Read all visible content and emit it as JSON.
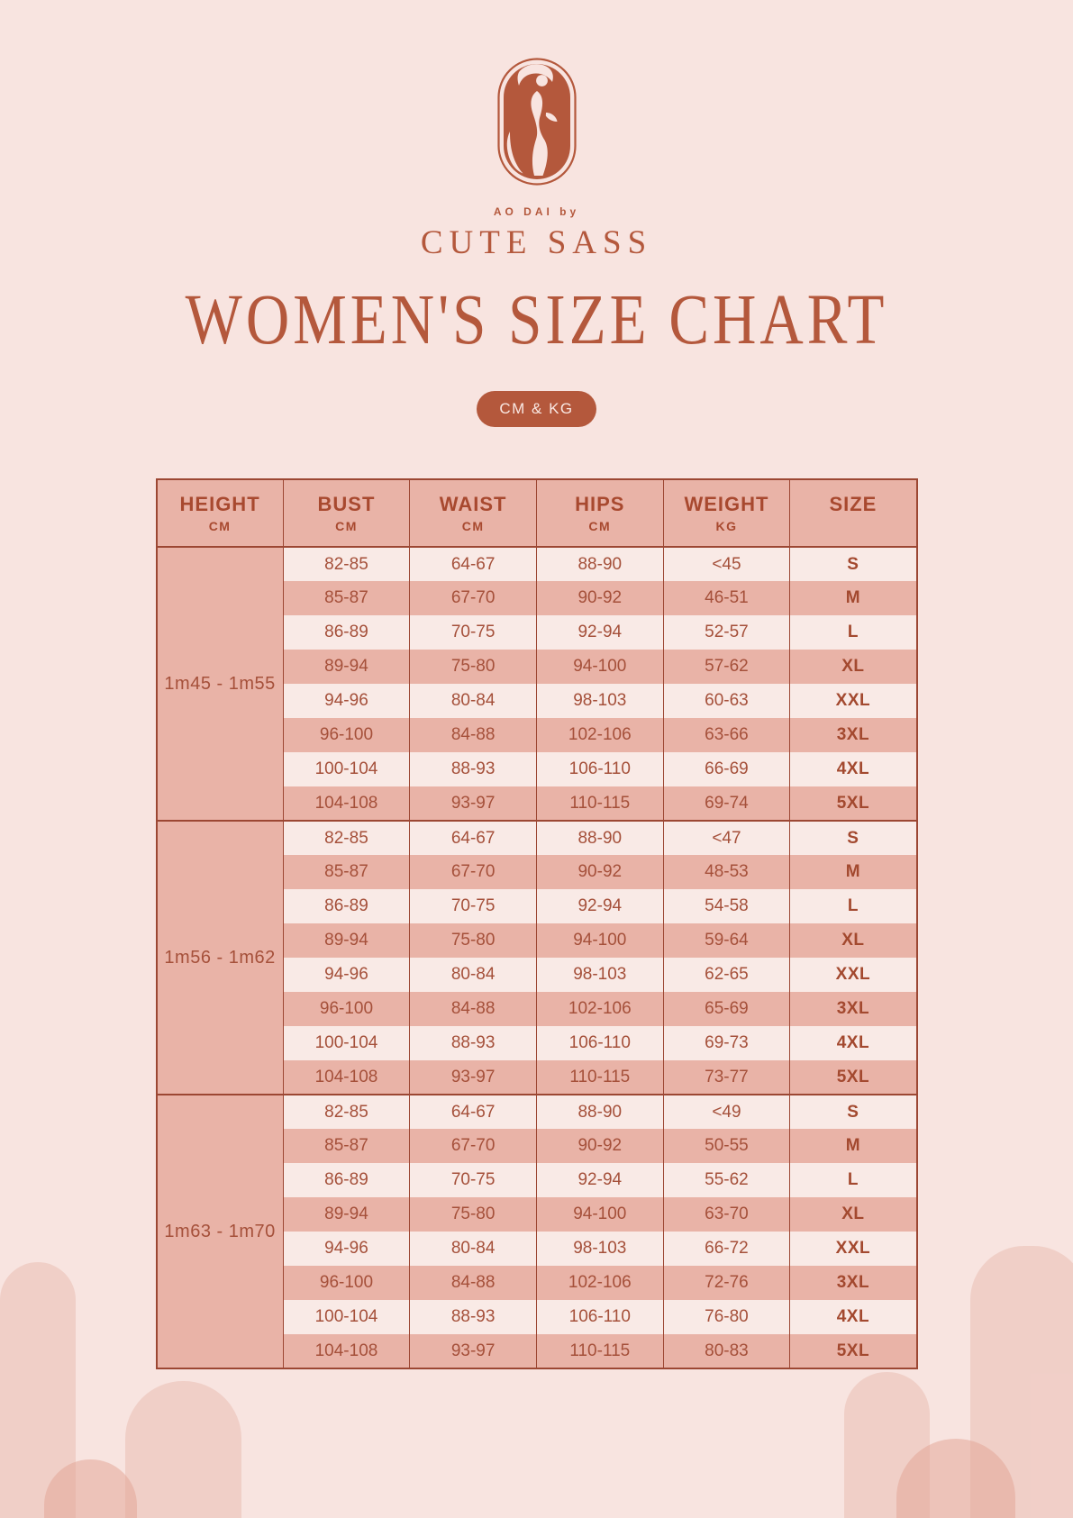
{
  "brand": {
    "logo_tagline": "AO DAI by",
    "logo_name": "CUTE SASS",
    "title": "WOMEN'S SIZE CHART",
    "units_badge": "CM & KG"
  },
  "table": {
    "headers": [
      {
        "label": "HEIGHT",
        "unit": "CM"
      },
      {
        "label": "BUST",
        "unit": "CM"
      },
      {
        "label": "WAIST",
        "unit": "CM"
      },
      {
        "label": "HIPS",
        "unit": "CM"
      },
      {
        "label": "WEIGHT",
        "unit": "KG"
      },
      {
        "label": "SIZE",
        "unit": ""
      }
    ],
    "groups": [
      {
        "height_range": "1m45 - 1m55",
        "rows": [
          {
            "bust": "82-85",
            "waist": "64-67",
            "hips": "88-90",
            "weight": "<45",
            "size": "S"
          },
          {
            "bust": "85-87",
            "waist": "67-70",
            "hips": "90-92",
            "weight": "46-51",
            "size": "M"
          },
          {
            "bust": "86-89",
            "waist": "70-75",
            "hips": "92-94",
            "weight": "52-57",
            "size": "L"
          },
          {
            "bust": "89-94",
            "waist": "75-80",
            "hips": "94-100",
            "weight": "57-62",
            "size": "XL"
          },
          {
            "bust": "94-96",
            "waist": "80-84",
            "hips": "98-103",
            "weight": "60-63",
            "size": "XXL"
          },
          {
            "bust": "96-100",
            "waist": "84-88",
            "hips": "102-106",
            "weight": "63-66",
            "size": "3XL"
          },
          {
            "bust": "100-104",
            "waist": "88-93",
            "hips": "106-110",
            "weight": "66-69",
            "size": "4XL"
          },
          {
            "bust": "104-108",
            "waist": "93-97",
            "hips": "110-115",
            "weight": "69-74",
            "size": "5XL"
          }
        ]
      },
      {
        "height_range": "1m56 - 1m62",
        "rows": [
          {
            "bust": "82-85",
            "waist": "64-67",
            "hips": "88-90",
            "weight": "<47",
            "size": "S"
          },
          {
            "bust": "85-87",
            "waist": "67-70",
            "hips": "90-92",
            "weight": "48-53",
            "size": "M"
          },
          {
            "bust": "86-89",
            "waist": "70-75",
            "hips": "92-94",
            "weight": "54-58",
            "size": "L"
          },
          {
            "bust": "89-94",
            "waist": "75-80",
            "hips": "94-100",
            "weight": "59-64",
            "size": "XL"
          },
          {
            "bust": "94-96",
            "waist": "80-84",
            "hips": "98-103",
            "weight": "62-65",
            "size": "XXL"
          },
          {
            "bust": "96-100",
            "waist": "84-88",
            "hips": "102-106",
            "weight": "65-69",
            "size": "3XL"
          },
          {
            "bust": "100-104",
            "waist": "88-93",
            "hips": "106-110",
            "weight": "69-73",
            "size": "4XL"
          },
          {
            "bust": "104-108",
            "waist": "93-97",
            "hips": "110-115",
            "weight": "73-77",
            "size": "5XL"
          }
        ]
      },
      {
        "height_range": "1m63 - 1m70",
        "rows": [
          {
            "bust": "82-85",
            "waist": "64-67",
            "hips": "88-90",
            "weight": "<49",
            "size": "S"
          },
          {
            "bust": "85-87",
            "waist": "67-70",
            "hips": "90-92",
            "weight": "50-55",
            "size": "M"
          },
          {
            "bust": "86-89",
            "waist": "70-75",
            "hips": "92-94",
            "weight": "55-62",
            "size": "L"
          },
          {
            "bust": "89-94",
            "waist": "75-80",
            "hips": "94-100",
            "weight": "63-70",
            "size": "XL"
          },
          {
            "bust": "94-96",
            "waist": "80-84",
            "hips": "98-103",
            "weight": "66-72",
            "size": "XXL"
          },
          {
            "bust": "96-100",
            "waist": "84-88",
            "hips": "102-106",
            "weight": "72-76",
            "size": "3XL"
          },
          {
            "bust": "100-104",
            "waist": "88-93",
            "hips": "106-110",
            "weight": "76-80",
            "size": "4XL"
          },
          {
            "bust": "104-108",
            "waist": "93-97",
            "hips": "110-115",
            "weight": "80-83",
            "size": "5XL"
          }
        ]
      }
    ]
  },
  "colors": {
    "accent": "#b4583c",
    "page-bg": "#f8e4e0",
    "row-light": "#f9eae6",
    "row-dark": "#e9b3a7",
    "table-border": "#9c4733",
    "cell-text": "#a5503a",
    "badge-text": "#f9e8e3"
  }
}
